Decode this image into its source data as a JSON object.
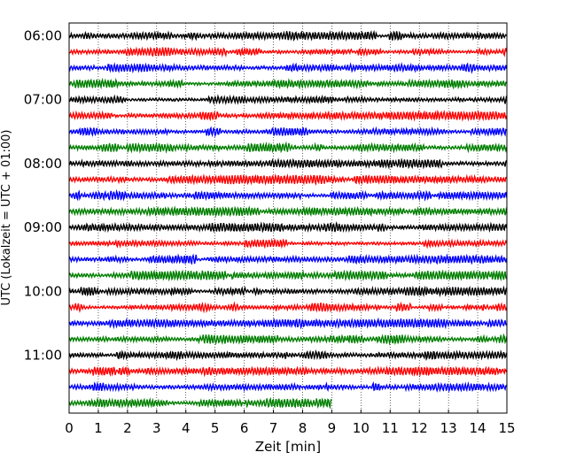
{
  "chart_data": {
    "type": "line",
    "title": "",
    "xlabel": "Zeit  [min]",
    "ylabel": "UTC (Lokalzeit = UTC + 01:00)",
    "xlim": [
      0,
      15
    ],
    "x_ticks": [
      "0",
      "1",
      "2",
      "3",
      "4",
      "5",
      "6",
      "7",
      "8",
      "9",
      "10",
      "11",
      "12",
      "13",
      "14",
      "15"
    ],
    "y_tick_labels": [
      "06:00",
      "07:00",
      "08:00",
      "09:00",
      "10:00",
      "11:00"
    ],
    "grid": "vertical dotted",
    "trace_interval_minutes": 15,
    "trace_colors": [
      "#000000",
      "#ff0000",
      "#0000ff",
      "#007f00"
    ],
    "traces": [
      {
        "start": "06:00",
        "end_min": 15
      },
      {
        "start": "06:15",
        "end_min": 15
      },
      {
        "start": "06:30",
        "end_min": 15
      },
      {
        "start": "06:45",
        "end_min": 15
      },
      {
        "start": "07:00",
        "end_min": 15
      },
      {
        "start": "07:15",
        "end_min": 15
      },
      {
        "start": "07:30",
        "end_min": 15
      },
      {
        "start": "07:45",
        "end_min": 15
      },
      {
        "start": "08:00",
        "end_min": 15
      },
      {
        "start": "08:15",
        "end_min": 15
      },
      {
        "start": "08:30",
        "end_min": 15
      },
      {
        "start": "08:45",
        "end_min": 15
      },
      {
        "start": "09:00",
        "end_min": 15
      },
      {
        "start": "09:15",
        "end_min": 15
      },
      {
        "start": "09:30",
        "end_min": 15
      },
      {
        "start": "09:45",
        "end_min": 15
      },
      {
        "start": "10:00",
        "end_min": 15
      },
      {
        "start": "10:15",
        "end_min": 15
      },
      {
        "start": "10:30",
        "end_min": 15
      },
      {
        "start": "10:45",
        "end_min": 15
      },
      {
        "start": "11:00",
        "end_min": 15
      },
      {
        "start": "11:15",
        "end_min": 15
      },
      {
        "start": "11:30",
        "end_min": 15
      },
      {
        "start": "11:45",
        "end_min": 9
      }
    ]
  }
}
